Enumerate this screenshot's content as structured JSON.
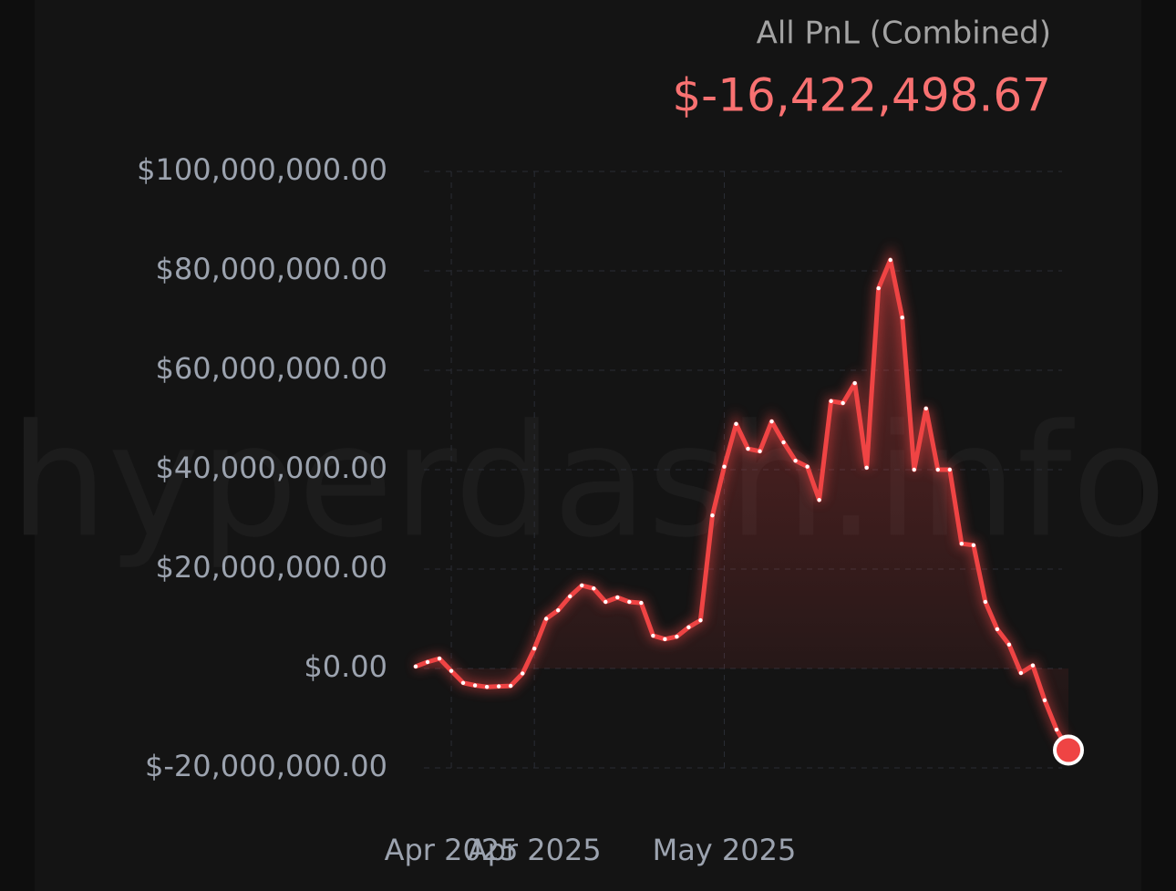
{
  "chart_data": {
    "type": "line",
    "title": "All PnL (Combined)",
    "subtitle": "$-16,422,498.67",
    "watermark": "hyperdash.info",
    "categories": [
      null,
      null,
      null,
      "Apr 2025",
      null,
      null,
      null,
      null,
      null,
      null,
      "Apr 2025",
      null,
      null,
      null,
      null,
      null,
      null,
      null,
      null,
      null,
      null,
      null,
      null,
      null,
      null,
      null,
      "May 2025",
      null,
      null,
      null,
      null,
      null,
      null,
      null,
      null,
      null,
      null,
      null,
      null,
      null,
      null,
      null,
      null,
      null,
      null,
      null,
      null,
      null,
      null,
      null,
      null,
      null,
      null,
      null,
      null,
      null
    ],
    "series": [
      {
        "color": "#ef4444",
        "values": [
          400000,
          1300000,
          2000000,
          -500000,
          -2900000,
          -3400000,
          -3700000,
          -3600000,
          -3500000,
          -1000000,
          4000000,
          10000000,
          11700000,
          14500000,
          16700000,
          16100000,
          13400000,
          14300000,
          13400000,
          13200000,
          6600000,
          5900000,
          6400000,
          8300000,
          9700000,
          30800000,
          40600000,
          49200000,
          44200000,
          43700000,
          49700000,
          45500000,
          41800000,
          40600000,
          33900000,
          53800000,
          53400000,
          57400000,
          40400000,
          76500000,
          82200000,
          70600000,
          40000000,
          52300000,
          40000000,
          40000000,
          25100000,
          24800000,
          13400000,
          7900000,
          4800000,
          -900000,
          600000,
          -6400000,
          -12300000,
          -16422498.67
        ]
      }
    ],
    "ylim": [
      -20000000,
      100000000
    ],
    "yticks": [
      {
        "value": -20000000,
        "label": "$-20,000,000.00"
      },
      {
        "value": 0,
        "label": "$0.00"
      },
      {
        "value": 20000000,
        "label": "$20,000,000.00"
      },
      {
        "value": 40000000,
        "label": "$40,000,000.00"
      },
      {
        "value": 60000000,
        "label": "$60,000,000.00"
      },
      {
        "value": 80000000,
        "label": "$80,000,000.00"
      },
      {
        "value": 100000000,
        "label": "$100,000,000.00"
      }
    ],
    "grid": true
  }
}
